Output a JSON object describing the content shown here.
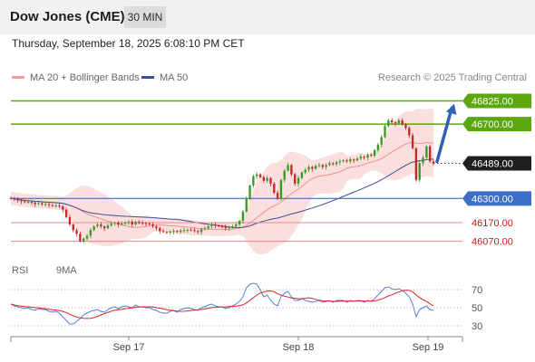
{
  "header": {
    "title": "Dow Jones (CME)",
    "timeframe": "30 MIN"
  },
  "timestamp": "Thursday, September 18, 2025 6:08:10 PM CET",
  "legend": {
    "ma_bb": "MA 20 + Bollinger Bands",
    "ma50": "MA 50",
    "copyright": "Research © 2025 Trading Central"
  },
  "rsi_legend": {
    "rsi": "RSI",
    "ma": "9MA"
  },
  "colors": {
    "green": "#5aa70f",
    "blue": "#3d6fc9",
    "red": "#e06666",
    "candle_up": "#3a9a26",
    "candle_down": "#c42828",
    "bb_fill": "#f9d3d3",
    "ma50": "#3d4f8f"
  },
  "chart_data": {
    "type": "candlestick",
    "x_ticks": [
      "Sep 17",
      "Sep 18",
      "Sep 19"
    ],
    "ylim": [
      45990,
      46920
    ],
    "levels": [
      {
        "value": 46825.0,
        "label": "46825.00",
        "style": "green"
      },
      {
        "value": 46700.0,
        "label": "46700.00",
        "style": "green"
      },
      {
        "value": 46489.0,
        "label": "46489.00",
        "style": "current"
      },
      {
        "value": 46300.0,
        "label": "46300.00",
        "style": "blue"
      },
      {
        "value": 46170.0,
        "label": "46170.00",
        "style": "red"
      },
      {
        "value": 46070.0,
        "label": "46070.00",
        "style": "red"
      }
    ],
    "close": [
      46300,
      46295,
      46290,
      46285,
      46280,
      46282,
      46278,
      46270,
      46275,
      46268,
      46270,
      46265,
      46260,
      46262,
      46258,
      46240,
      46200,
      46160,
      46130,
      46110,
      46070,
      46085,
      46100,
      46130,
      46150,
      46160,
      46150,
      46140,
      46155,
      46165,
      46170,
      46160,
      46165,
      46170,
      46175,
      46160,
      46175,
      46170,
      46168,
      46165,
      46160,
      46150,
      46140,
      46125,
      46120,
      46118,
      46122,
      46125,
      46120,
      46128,
      46130,
      46132,
      46130,
      46125,
      46120,
      46135,
      46140,
      46150,
      46160,
      46155,
      46150,
      46148,
      46140,
      46145,
      46150,
      46160,
      46180,
      46230,
      46300,
      46370,
      46420,
      46430,
      46415,
      46395,
      46410,
      46380,
      46330,
      46300,
      46400,
      46450,
      46480,
      46430,
      46380,
      46410,
      46440,
      46455,
      46470,
      46460,
      46475,
      46480,
      46470,
      46480,
      46490,
      46485,
      46495,
      46500,
      46505,
      46500,
      46510,
      46505,
      46515,
      46525,
      46520,
      46535,
      46530,
      46560,
      46590,
      46630,
      46690,
      46720,
      46710,
      46705,
      46720,
      46700,
      46680,
      46640,
      46570,
      46400,
      46490,
      46520,
      46580,
      46500,
      46489
    ],
    "ma_period": 20,
    "bb_multiplier": 2,
    "ma50_period": 50,
    "rsi": {
      "ylim": [
        20,
        80
      ],
      "ticks": [
        70,
        50,
        30
      ],
      "values": [
        54,
        52,
        51,
        50,
        49,
        50,
        48,
        47,
        49,
        48,
        48,
        46,
        45,
        46,
        44,
        40,
        36,
        32,
        32,
        35,
        38,
        42,
        44,
        46,
        47,
        48,
        46,
        45,
        48,
        50,
        51,
        49,
        51,
        52,
        51,
        50,
        53,
        51,
        51,
        50,
        50,
        48,
        47,
        45,
        44,
        44,
        46,
        47,
        45,
        48,
        49,
        50,
        49,
        48,
        47,
        50,
        51,
        53,
        54,
        52,
        51,
        51,
        49,
        50,
        52,
        54,
        57,
        62,
        72,
        76,
        77,
        76,
        70,
        62,
        64,
        58,
        54,
        52,
        62,
        66,
        68,
        62,
        58,
        58,
        60,
        58,
        57,
        56,
        57,
        58,
        56,
        57,
        58,
        56,
        58,
        58,
        58,
        56,
        58,
        57,
        58,
        58,
        56,
        58,
        57,
        60,
        64,
        68,
        72,
        73,
        71,
        70,
        71,
        69,
        66,
        62,
        54,
        40,
        48,
        50,
        52,
        48,
        47
      ]
    }
  }
}
